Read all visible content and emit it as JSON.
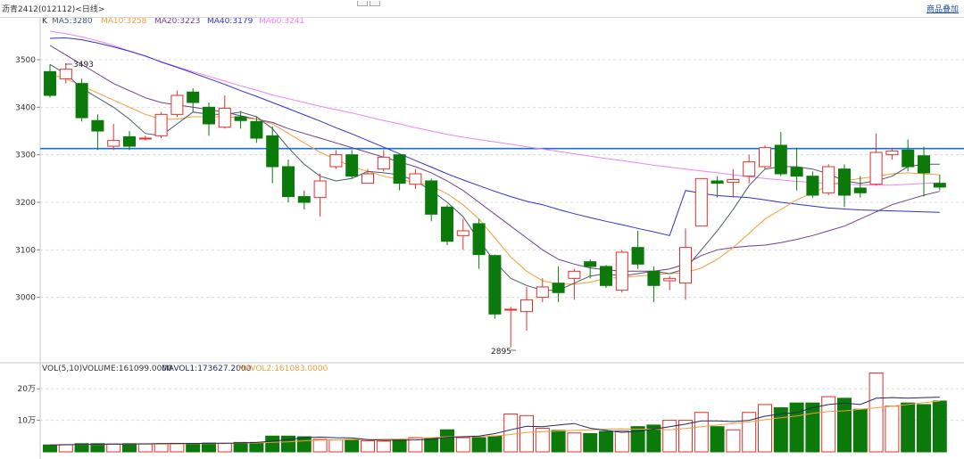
{
  "window": {
    "title": "沥青2412(012112)<日线>",
    "overlay_link": "商品叠加"
  },
  "legend": {
    "k_label": "K",
    "ma5": "MA5:3280",
    "ma10": "MA10:3258",
    "ma20": "MA20:3223",
    "ma40": "MA40:3179",
    "ma60": "MA60:3241",
    "vol_label": "VOL(5,10)",
    "volume": "VOLUME:161099.0000",
    "mavol1": "MAVOL1:173627.2000",
    "mavol2": "MAVOL2:161083.0000"
  },
  "annotations": {
    "high": "3493",
    "low": "2895"
  },
  "colors": {
    "up": "#e0302c",
    "down": "#0b7a0b",
    "ma5": "#475a6e",
    "ma10": "#f39c3c",
    "ma20": "#6e3f8a",
    "ma40": "#3232c8",
    "ma60": "#ee82ee",
    "hline": "#1a6fd8"
  },
  "chart_data": [
    {
      "type": "candlestick",
      "ylim": [
        2880,
        3560
      ],
      "yticks": [
        "3500",
        "3400",
        "3300",
        "3200",
        "3100",
        "3000"
      ],
      "horizontal_line": 3313,
      "candles": [
        [
          3475,
          3425,
          3490,
          3420
        ],
        [
          3460,
          3480,
          3493,
          3450
        ],
        [
          3450,
          3378,
          3460,
          3370
        ],
        [
          3372,
          3350,
          3385,
          3310
        ],
        [
          3318,
          3330,
          3365,
          3310
        ],
        [
          3338,
          3318,
          3350,
          3310
        ],
        [
          3335,
          3335,
          3340,
          3330
        ],
        [
          3340,
          3385,
          3390,
          3335
        ],
        [
          3385,
          3425,
          3435,
          3380
        ],
        [
          3432,
          3410,
          3440,
          3390
        ],
        [
          3400,
          3365,
          3410,
          3340
        ],
        [
          3358,
          3398,
          3425,
          3355
        ],
        [
          3380,
          3372,
          3392,
          3355
        ],
        [
          3370,
          3335,
          3380,
          3325
        ],
        [
          3340,
          3275,
          3360,
          3240
        ],
        [
          3275,
          3212,
          3290,
          3200
        ],
        [
          3212,
          3200,
          3225,
          3185
        ],
        [
          3210,
          3245,
          3260,
          3170
        ],
        [
          3275,
          3300,
          3310,
          3270
        ],
        [
          3300,
          3255,
          3310,
          3250
        ],
        [
          3240,
          3260,
          3270,
          3240
        ],
        [
          3270,
          3295,
          3310,
          3265
        ],
        [
          3300,
          3240,
          3300,
          3225
        ],
        [
          3238,
          3260,
          3270,
          3228
        ],
        [
          3245,
          3175,
          3250,
          3160
        ],
        [
          3190,
          3118,
          3195,
          3110
        ],
        [
          3130,
          3140,
          3165,
          3100
        ],
        [
          3155,
          3090,
          3165,
          3060
        ],
        [
          3088,
          2965,
          3090,
          2955
        ],
        [
          2975,
          2975,
          2980,
          2895
        ],
        [
          2970,
          2995,
          3022,
          2930
        ],
        [
          3000,
          3022,
          3040,
          2990
        ],
        [
          3030,
          3010,
          3065,
          2990
        ],
        [
          3040,
          3055,
          3060,
          2995
        ],
        [
          3075,
          3065,
          3080,
          3040
        ],
        [
          3065,
          3025,
          3068,
          3020
        ],
        [
          3015,
          3095,
          3100,
          3010
        ],
        [
          3105,
          3070,
          3140,
          3060
        ],
        [
          3055,
          3025,
          3065,
          2990
        ],
        [
          3035,
          3040,
          3045,
          3015
        ],
        [
          3030,
          3105,
          3145,
          2995
        ],
        [
          3150,
          3250,
          3155,
          3220
        ],
        [
          3245,
          3240,
          3255,
          3210
        ],
        [
          3242,
          3248,
          3270,
          3210
        ],
        [
          3255,
          3285,
          3300,
          3240
        ],
        [
          3275,
          3315,
          3320,
          3270
        ],
        [
          3320,
          3260,
          3348,
          3255
        ],
        [
          3273,
          3255,
          3315,
          3225
        ],
        [
          3255,
          3215,
          3265,
          3210
        ],
        [
          3220,
          3275,
          3280,
          3215
        ],
        [
          3270,
          3215,
          3280,
          3190
        ],
        [
          3230,
          3220,
          3255,
          3210
        ],
        [
          3238,
          3305,
          3345,
          3235
        ],
        [
          3300,
          3308,
          3315,
          3290
        ],
        [
          3310,
          3275,
          3332,
          3265
        ],
        [
          3298,
          3262,
          3317,
          3212
        ],
        [
          3240,
          3232,
          3258,
          3225
        ]
      ],
      "ma5": [
        3490,
        3470,
        3440,
        3420,
        3400,
        3375,
        3345,
        3340,
        3365,
        3390,
        3385,
        3385,
        3390,
        3380,
        3355,
        3315,
        3280,
        3255,
        3245,
        3250,
        3265,
        3262,
        3258,
        3245,
        3225,
        3200,
        3170,
        3120,
        3075,
        3040,
        3025,
        3015,
        3015,
        3030,
        3045,
        3050,
        3045,
        3050,
        3055,
        3050,
        3060,
        3100,
        3140,
        3185,
        3235,
        3270,
        3275,
        3275,
        3270,
        3260,
        3245,
        3240,
        3245,
        3255,
        3275,
        3280,
        3280
      ],
      "ma10": [
        3470,
        3460,
        3445,
        3430,
        3415,
        3400,
        3385,
        3375,
        3375,
        3380,
        3380,
        3380,
        3378,
        3375,
        3365,
        3345,
        3325,
        3305,
        3290,
        3275,
        3265,
        3255,
        3248,
        3242,
        3235,
        3218,
        3195,
        3165,
        3125,
        3085,
        3055,
        3035,
        3028,
        3028,
        3032,
        3040,
        3042,
        3045,
        3048,
        3050,
        3052,
        3062,
        3080,
        3105,
        3135,
        3165,
        3185,
        3205,
        3220,
        3235,
        3245,
        3250,
        3255,
        3260,
        3262,
        3260,
        3258
      ],
      "ma20": [
        3530,
        3510,
        3490,
        3470,
        3450,
        3435,
        3420,
        3410,
        3405,
        3400,
        3395,
        3390,
        3382,
        3375,
        3368,
        3355,
        3345,
        3335,
        3325,
        3315,
        3305,
        3295,
        3285,
        3275,
        3262,
        3245,
        3225,
        3200,
        3175,
        3150,
        3125,
        3100,
        3080,
        3070,
        3062,
        3058,
        3055,
        3055,
        3055,
        3060,
        3070,
        3088,
        3100,
        3105,
        3108,
        3110,
        3115,
        3122,
        3130,
        3140,
        3150,
        3165,
        3180,
        3195,
        3205,
        3215,
        3223
      ],
      "ma40": [
        3545,
        3546,
        3542,
        3535,
        3527,
        3518,
        3508,
        3495,
        3484,
        3472,
        3460,
        3448,
        3435,
        3423,
        3410,
        3397,
        3384,
        3371,
        3357,
        3344,
        3330,
        3316,
        3302,
        3288,
        3274,
        3260,
        3247,
        3235,
        3223,
        3212,
        3202,
        3195,
        3185,
        3176,
        3168,
        3160,
        3153,
        3145,
        3138,
        3130,
        3225,
        3219,
        3214,
        3212,
        3210,
        3205,
        3200,
        3196,
        3192,
        3188,
        3186,
        3184,
        3183,
        3182,
        3181,
        3180,
        3179
      ],
      "ma60": [
        3560,
        3555,
        3548,
        3540,
        3530,
        3518,
        3507,
        3496,
        3485,
        3475,
        3465,
        3455,
        3445,
        3436,
        3426,
        3418,
        3410,
        3402,
        3395,
        3388,
        3380,
        3372,
        3365,
        3357,
        3350,
        3343,
        3337,
        3332,
        3327,
        3322,
        3317,
        3312,
        3307,
        3302,
        3297,
        3292,
        3288,
        3283,
        3278,
        3274,
        3270,
        3266,
        3262,
        3258,
        3254,
        3250,
        3247,
        3244,
        3242,
        3240,
        3238,
        3237,
        3236,
        3236,
        3238,
        3240,
        3241
      ]
    },
    {
      "type": "bar",
      "yticks": [
        "20万",
        "10万"
      ],
      "ylim": [
        0,
        260000
      ],
      "volume": [
        22000,
        23000,
        26000,
        26000,
        25000,
        26000,
        25000,
        26000,
        27000,
        27000,
        28000,
        27000,
        30000,
        30000,
        50000,
        50000,
        48000,
        40000,
        38000,
        39000,
        35000,
        34000,
        38000,
        45000,
        44000,
        70000,
        45000,
        45000,
        50000,
        120000,
        115000,
        75000,
        68000,
        60000,
        58000,
        65000,
        66000,
        80000,
        85000,
        100000,
        100000,
        125000,
        80000,
        70000,
        125000,
        150000,
        140000,
        155000,
        155000,
        175000,
        170000,
        135000,
        250000,
        145000,
        155000,
        150000,
        161099
      ],
      "mavol1": [
        22000,
        22500,
        23500,
        24000,
        24500,
        25000,
        25500,
        26000,
        26500,
        26500,
        27000,
        27500,
        28000,
        30000,
        34000,
        39000,
        45000,
        47000,
        45000,
        44000,
        39000,
        37000,
        37000,
        38000,
        40000,
        46000,
        48000,
        50000,
        58000,
        70000,
        81000,
        80000,
        85000,
        90000,
        75000,
        68000,
        62000,
        65000,
        72000,
        80000,
        88000,
        98000,
        98000,
        96000,
        100000,
        113000,
        120000,
        125000,
        140000,
        150000,
        155000,
        150000,
        170000,
        172000,
        170000,
        172000,
        173627
      ],
      "mavol2": [
        22000,
        22200,
        22800,
        23300,
        23700,
        24200,
        24600,
        25000,
        25400,
        25700,
        26000,
        26400,
        27000,
        28200,
        30200,
        32000,
        35000,
        37000,
        38000,
        39500,
        39000,
        40000,
        41000,
        43000,
        45000,
        48000,
        48000,
        48000,
        50000,
        55000,
        62000,
        64000,
        66000,
        68000,
        70000,
        72000,
        73000,
        72000,
        72000,
        70000,
        74000,
        80000,
        85000,
        90000,
        95000,
        102000,
        108000,
        114000,
        122000,
        128000,
        130000,
        135000,
        140000,
        145000,
        150000,
        156000,
        161083
      ]
    }
  ]
}
